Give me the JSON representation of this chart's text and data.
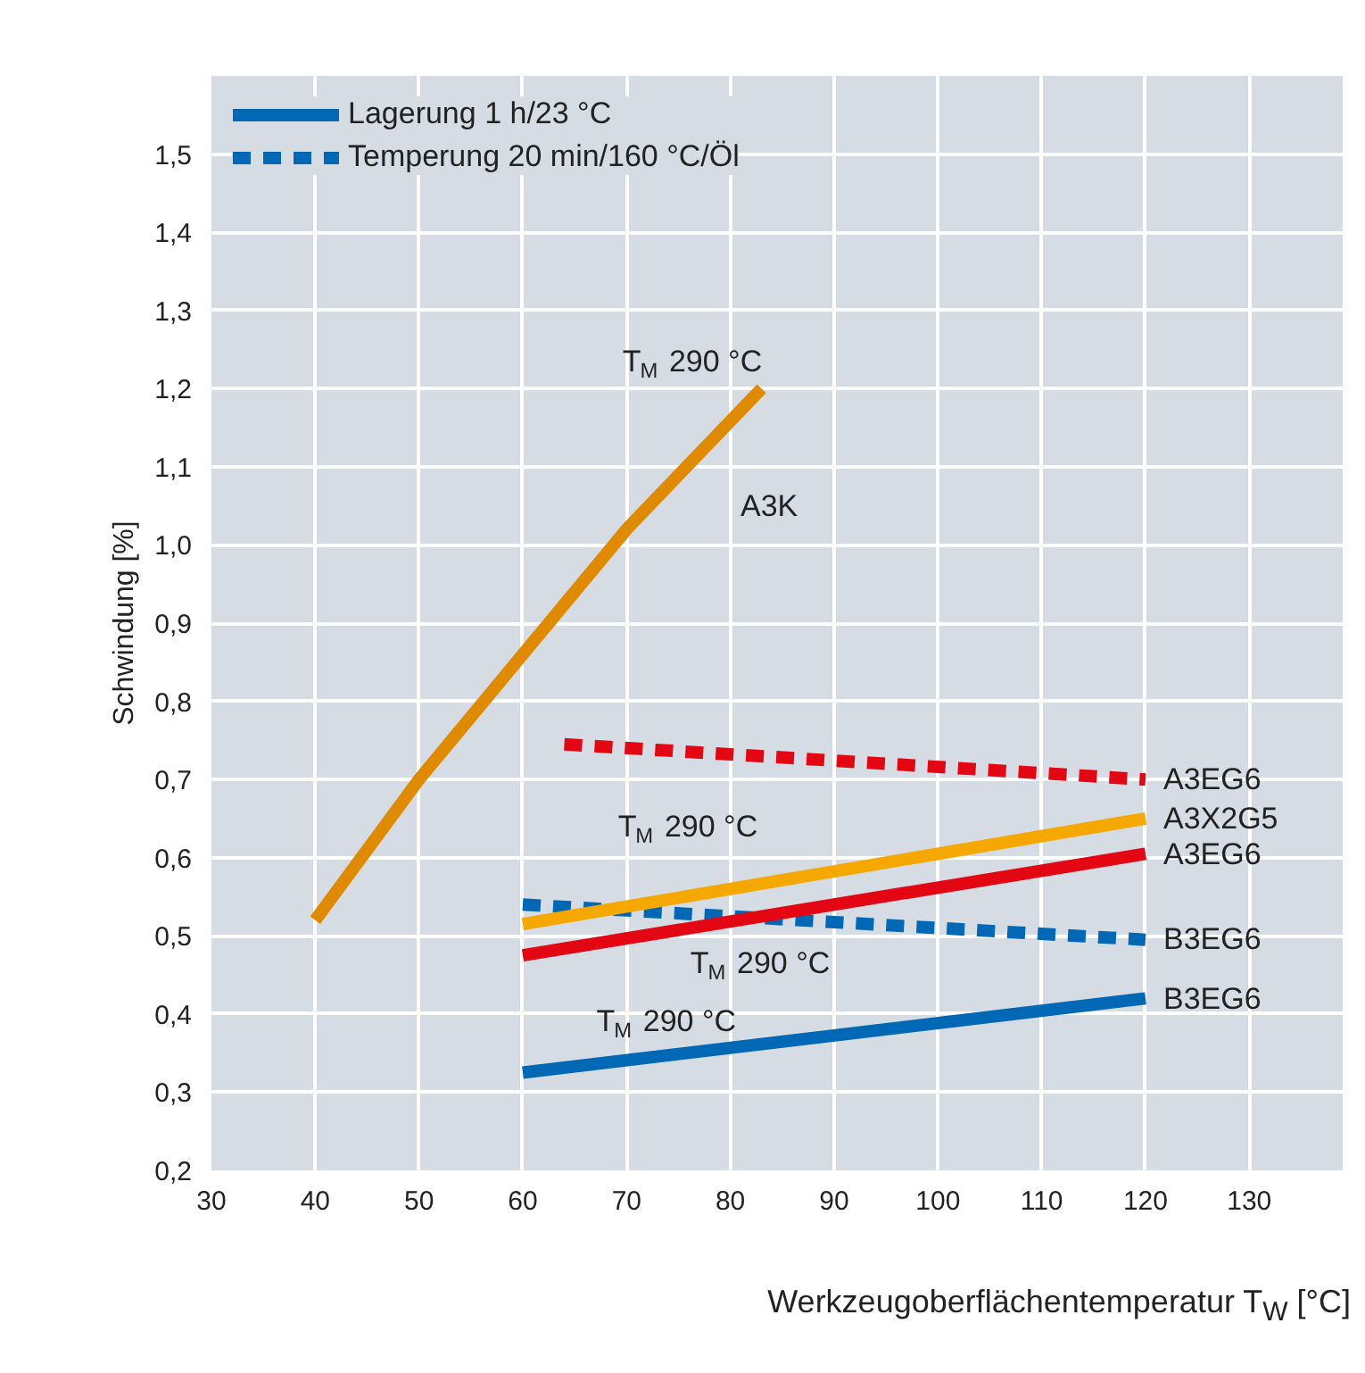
{
  "chart_data": {
    "type": "line",
    "xlabel": "Werkzeugoberflächentemperatur T$_{W}$ [°C]",
    "ylabel": "Schwindung [%]",
    "xlim": [
      30,
      139
    ],
    "ylim": [
      0.2,
      1.6
    ],
    "xticks": [
      30,
      40,
      50,
      60,
      70,
      80,
      90,
      100,
      110,
      120,
      130
    ],
    "yticks": [
      {
        "value": 0.2,
        "label": "0,2"
      },
      {
        "value": 0.3,
        "label": "0,3"
      },
      {
        "value": 0.4,
        "label": "0,4"
      },
      {
        "value": 0.5,
        "label": "0,5"
      },
      {
        "value": 0.6,
        "label": "0,6"
      },
      {
        "value": 0.7,
        "label": "0,7"
      },
      {
        "value": 0.8,
        "label": "0,8"
      },
      {
        "value": 0.9,
        "label": "0,9"
      },
      {
        "value": 1.0,
        "label": "1,0"
      },
      {
        "value": 1.1,
        "label": "1,1"
      },
      {
        "value": 1.2,
        "label": "1,2"
      },
      {
        "value": 1.3,
        "label": "1,3"
      },
      {
        "value": 1.4,
        "label": "1,4"
      },
      {
        "value": 1.5,
        "label": "1,5"
      }
    ],
    "grid": true,
    "legend": "top left",
    "marker": "none",
    "series": [
      {
        "name": "Lagerung 1 h/23 °C",
        "color": "#0068b4",
        "line_style": "solid",
        "x": [
          60,
          120
        ],
        "values": [
          0.325,
          0.42
        ]
      },
      {
        "name": "Temperung 20 min/160 °C/Öl",
        "color": "#0068b4",
        "line_style": "dashed",
        "x": [
          60,
          120
        ],
        "values": [
          0.54,
          0.495
        ]
      },
      {
        "color": "#e08a00",
        "line_style": "solid",
        "x": [
          40,
          50,
          60,
          70,
          83
        ],
        "values": [
          0.52,
          0.7,
          0.86,
          1.02,
          1.2
        ]
      },
      {
        "color": "#f5a800",
        "line_style": "solid",
        "x": [
          60,
          120
        ],
        "values": [
          0.515,
          0.65
        ]
      },
      {
        "color": "#e30613",
        "line_style": "solid",
        "x": [
          60,
          120
        ],
        "values": [
          0.475,
          0.605
        ]
      },
      {
        "color": "#e30613",
        "line_style": "dashed",
        "x": [
          64,
          120
        ],
        "values": [
          0.745,
          0.7
        ]
      }
    ],
    "annotations": [
      "T$_{M}$ 290 °C",
      "A3K",
      "T$_{M}$ 290 °C",
      "T$_{M}$ 290 °C",
      "T$_{M}$ 290 °C",
      "A3EG6",
      "A3X2G5",
      "A3EG6",
      "B3EG6",
      "B3EG6"
    ]
  }
}
